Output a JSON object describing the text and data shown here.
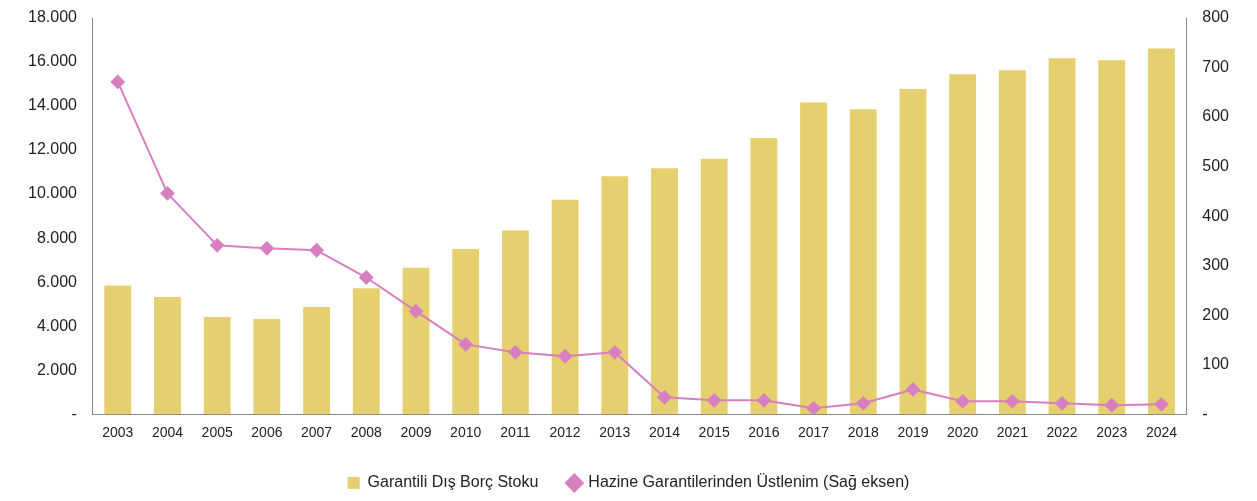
{
  "chart_data": {
    "type": "bar",
    "categories": [
      "2003",
      "2004",
      "2005",
      "2006",
      "2007",
      "2008",
      "2009",
      "2010",
      "2011",
      "2012",
      "2013",
      "2014",
      "2015",
      "2016",
      "2017",
      "2018",
      "2019",
      "2020",
      "2021",
      "2022",
      "2023",
      "2024"
    ],
    "series": [
      {
        "name": "Garantili Dış Borç Stoku",
        "color": "#e6cf6e",
        "values": [
          5850,
          5320,
          4420,
          4330,
          4870,
          5720,
          6650,
          7500,
          8350,
          9740,
          10810,
          11170,
          11610,
          12550,
          14160,
          13850,
          14780,
          15450,
          15630,
          16170,
          16080,
          16610
        ]
      },
      {
        "name": "Hazine Garantilerinden Üstlenim (Sağ eksen)",
        "type": "line",
        "axis": "y2",
        "color": "#d77fc0",
        "values": [
          671,
          446,
          341,
          335,
          331,
          276,
          208,
          141,
          125,
          117,
          125,
          34,
          28,
          28,
          12,
          22,
          50,
          26,
          26,
          22,
          18,
          20
        ]
      }
    ],
    "ylim": [
      0,
      18000
    ],
    "yticks": [
      {
        "value": 0,
        "label": "-"
      },
      {
        "value": 2000,
        "label": "2.000"
      },
      {
        "value": 4000,
        "label": "4.000"
      },
      {
        "value": 6000,
        "label": "6.000"
      },
      {
        "value": 8000,
        "label": "8.000"
      },
      {
        "value": 10000,
        "label": "10.000"
      },
      {
        "value": 12000,
        "label": "12.000"
      },
      {
        "value": 14000,
        "label": "14.000"
      },
      {
        "value": 16000,
        "label": "16.000"
      },
      {
        "value": 18000,
        "label": "18.000"
      }
    ],
    "y2lim": [
      0,
      800
    ],
    "y2ticks": [
      {
        "value": 0,
        "label": "-"
      },
      100,
      200,
      300,
      400,
      500,
      600,
      700,
      800
    ],
    "grid": false,
    "legend": "bottom",
    "marker": "diamond",
    "line_style": "solid"
  }
}
